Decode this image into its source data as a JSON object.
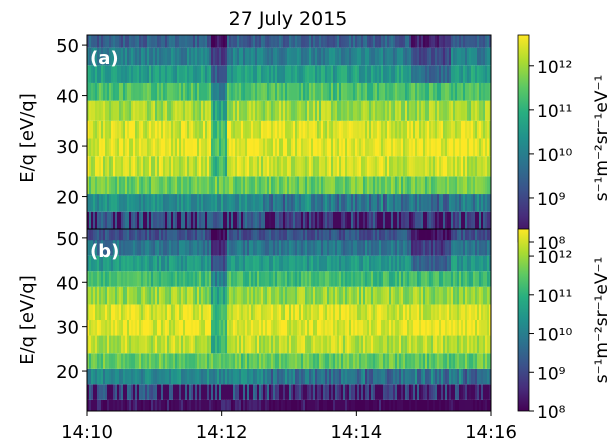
{
  "chart_data": [
    {
      "type": "heatmap",
      "title": "27 July 2015",
      "panel_label": "(a)",
      "ylabel": "E/q [eV/q]",
      "ylim": [
        11,
        52
      ],
      "yticks": [
        20,
        30,
        40,
        50
      ],
      "xlim": [
        "14:10",
        "14:16"
      ],
      "xticks": [
        "14:10",
        "14:12",
        "14:14",
        "14:16"
      ],
      "colorbar": {
        "label": "s⁻¹m⁻²sr⁻¹eV⁻¹",
        "scale": "log",
        "range": [
          100000000.0,
          5000000000000.0
        ],
        "ticks": [
          "10⁸",
          "10⁹",
          "10¹⁰",
          "10¹¹",
          "10¹²"
        ],
        "colormap": "viridis"
      },
      "energy_bands_eV_per_q": [
        12,
        15,
        19,
        22,
        26,
        30,
        33,
        37,
        41,
        44,
        48,
        51
      ],
      "typical_log10_flux_by_band": [
        8.2,
        9.4,
        10.3,
        11.6,
        12.3,
        12.5,
        12.4,
        12.0,
        11.3,
        10.6,
        10.0,
        9.4
      ]
    },
    {
      "type": "heatmap",
      "panel_label": "(b)",
      "ylabel": "E/q [eV/q]",
      "ylim": [
        11,
        52
      ],
      "yticks": [
        20,
        30,
        40,
        50
      ],
      "xlim": [
        "14:10",
        "14:16"
      ],
      "xticks": [
        "14:10",
        "14:12",
        "14:14",
        "14:16"
      ],
      "colorbar": {
        "label": "s⁻¹m⁻²sr⁻¹eV⁻¹",
        "scale": "log",
        "range": [
          100000000.0,
          5000000000000.0
        ],
        "ticks": [
          "10⁸",
          "10⁹",
          "10¹⁰",
          "10¹¹",
          "10¹²"
        ],
        "colormap": "viridis"
      },
      "energy_bands_eV_per_q": [
        12,
        15,
        19,
        22,
        26,
        30,
        33,
        37,
        41,
        44,
        48,
        51
      ],
      "typical_log10_flux_by_band": [
        8.3,
        9.3,
        10.2,
        11.5,
        12.2,
        12.5,
        12.4,
        11.9,
        11.2,
        10.5,
        9.8,
        9.2
      ]
    }
  ]
}
